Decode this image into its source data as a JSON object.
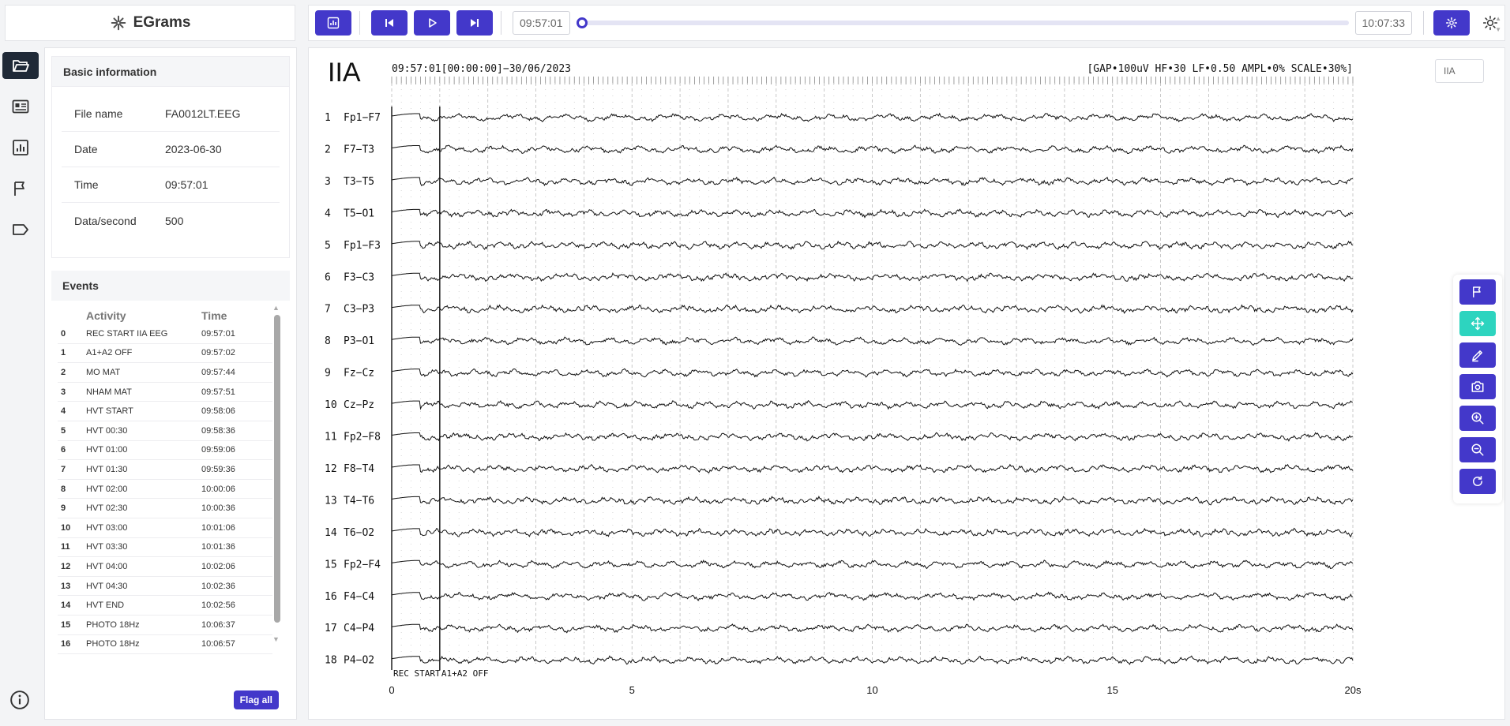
{
  "app": {
    "title": "EGrams"
  },
  "toolbar": {
    "start_time": "09:57:01",
    "end_time": "10:07:33",
    "progress": 0.0
  },
  "rail": {
    "items": [
      {
        "name": "folder-icon",
        "active": true
      },
      {
        "name": "details-icon",
        "active": false
      },
      {
        "name": "chart-icon",
        "active": false
      },
      {
        "name": "flag-icon",
        "active": false
      },
      {
        "name": "label-icon",
        "active": false
      }
    ]
  },
  "info": {
    "header": "Basic information",
    "rows": [
      {
        "label": "File name",
        "value": "FA0012LT.EEG"
      },
      {
        "label": "Date",
        "value": "2023-06-30"
      },
      {
        "label": "Time",
        "value": "09:57:01"
      },
      {
        "label": "Data/second",
        "value": "500"
      }
    ]
  },
  "events": {
    "header": "Events",
    "col_activity": "Activity",
    "col_time": "Time",
    "rows": [
      {
        "i": "0",
        "activity": "REC START IIA EEG",
        "time": "09:57:01"
      },
      {
        "i": "1",
        "activity": "A1+A2 OFF",
        "time": "09:57:02"
      },
      {
        "i": "2",
        "activity": "MO MAT",
        "time": "09:57:44"
      },
      {
        "i": "3",
        "activity": "NHAM MAT",
        "time": "09:57:51"
      },
      {
        "i": "4",
        "activity": "HVT START",
        "time": "09:58:06"
      },
      {
        "i": "5",
        "activity": "HVT 00:30",
        "time": "09:58:36"
      },
      {
        "i": "6",
        "activity": "HVT 01:00",
        "time": "09:59:06"
      },
      {
        "i": "7",
        "activity": "HVT 01:30",
        "time": "09:59:36"
      },
      {
        "i": "8",
        "activity": "HVT 02:00",
        "time": "10:00:06"
      },
      {
        "i": "9",
        "activity": "HVT 02:30",
        "time": "10:00:36"
      },
      {
        "i": "10",
        "activity": "HVT 03:00",
        "time": "10:01:06"
      },
      {
        "i": "11",
        "activity": "HVT 03:30",
        "time": "10:01:36"
      },
      {
        "i": "12",
        "activity": "HVT 04:00",
        "time": "10:02:06"
      },
      {
        "i": "13",
        "activity": "HVT 04:30",
        "time": "10:02:36"
      },
      {
        "i": "14",
        "activity": "HVT END",
        "time": "10:02:56"
      },
      {
        "i": "15",
        "activity": "PHOTO 18Hz",
        "time": "10:06:37"
      },
      {
        "i": "16",
        "activity": "PHOTO 18Hz",
        "time": "10:06:57"
      }
    ],
    "flag_all": "Flag all"
  },
  "eeg": {
    "montage": "IIA",
    "montage_input": "IIA",
    "header_left": "09:57:01[00:00:00]−30/06/2023",
    "header_right": "[GAP•100uV HF•30 LF•0.50 AMPL•0% SCALE•30%]",
    "channels": [
      {
        "n": "1",
        "name": "Fp1−F7"
      },
      {
        "n": "2",
        "name": "F7−T3"
      },
      {
        "n": "3",
        "name": "T3−T5"
      },
      {
        "n": "4",
        "name": "T5−O1"
      },
      {
        "n": "5",
        "name": "Fp1−F3"
      },
      {
        "n": "6",
        "name": "F3−C3"
      },
      {
        "n": "7",
        "name": "C3−P3"
      },
      {
        "n": "8",
        "name": "P3−O1"
      },
      {
        "n": "9",
        "name": "Fz−Cz"
      },
      {
        "n": "10",
        "name": "Cz−Pz"
      },
      {
        "n": "11",
        "name": "Fp2−F8"
      },
      {
        "n": "12",
        "name": "F8−T4"
      },
      {
        "n": "13",
        "name": "T4−T6"
      },
      {
        "n": "14",
        "name": "T6−O2"
      },
      {
        "n": "15",
        "name": "Fp2−F4"
      },
      {
        "n": "16",
        "name": "F4−C4"
      },
      {
        "n": "17",
        "name": "C4−P4"
      },
      {
        "n": "18",
        "name": "P4−O2"
      }
    ],
    "x_ticks": [
      {
        "v": 0,
        "label": "0"
      },
      {
        "v": 5,
        "label": "5"
      },
      {
        "v": 10,
        "label": "10"
      },
      {
        "v": 15,
        "label": "15"
      },
      {
        "v": 20,
        "label": "20s"
      }
    ],
    "x_range": [
      0,
      20
    ],
    "event_markers": [
      {
        "t": 0.0,
        "label": "REC START"
      },
      {
        "t": 1.0,
        "label": "A1+A2 OFF"
      }
    ]
  },
  "tools": [
    {
      "name": "flag-tool-icon",
      "active": false
    },
    {
      "name": "move-tool-icon",
      "active": true
    },
    {
      "name": "annotate-tool-icon",
      "active": false
    },
    {
      "name": "camera-icon",
      "active": false
    },
    {
      "name": "zoom-in-icon",
      "active": false
    },
    {
      "name": "zoom-out-icon",
      "active": false
    },
    {
      "name": "reset-icon",
      "active": false
    }
  ]
}
